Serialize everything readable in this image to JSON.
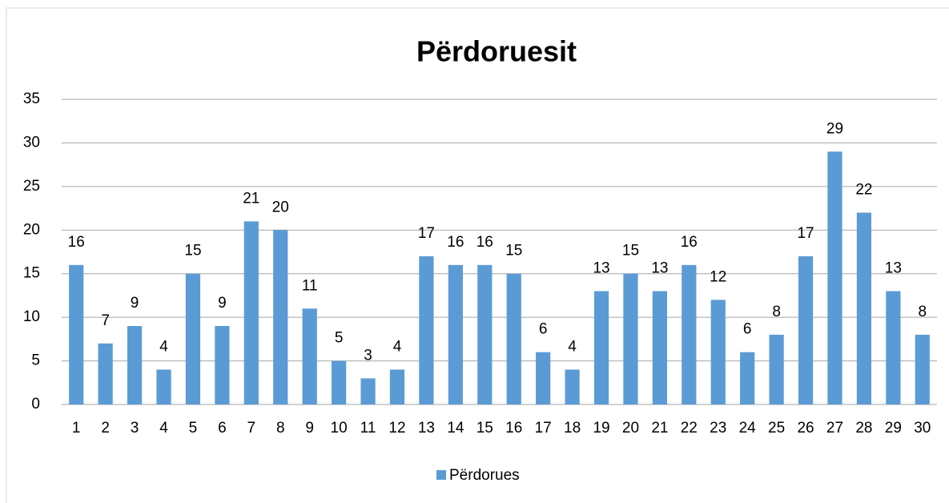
{
  "chart_data": {
    "type": "bar",
    "title": "Përdoruesit",
    "categories": [
      "1",
      "2",
      "3",
      "4",
      "5",
      "6",
      "7",
      "8",
      "9",
      "10",
      "11",
      "12",
      "13",
      "14",
      "15",
      "16",
      "17",
      "18",
      "19",
      "20",
      "21",
      "22",
      "23",
      "24",
      "25",
      "26",
      "27",
      "28",
      "29",
      "30"
    ],
    "series": [
      {
        "name": "Përdorues",
        "color": "#5b9bd5",
        "values": [
          16,
          7,
          9,
          4,
          15,
          9,
          21,
          20,
          11,
          5,
          3,
          4,
          17,
          16,
          16,
          15,
          6,
          4,
          13,
          15,
          13,
          16,
          12,
          6,
          8,
          17,
          29,
          22,
          13,
          8
        ]
      }
    ],
    "ylim": [
      0,
      35
    ],
    "yticks": [
      0,
      5,
      10,
      15,
      20,
      25,
      30,
      35
    ],
    "grid": true,
    "legend": "bottom",
    "data_labels": true
  }
}
